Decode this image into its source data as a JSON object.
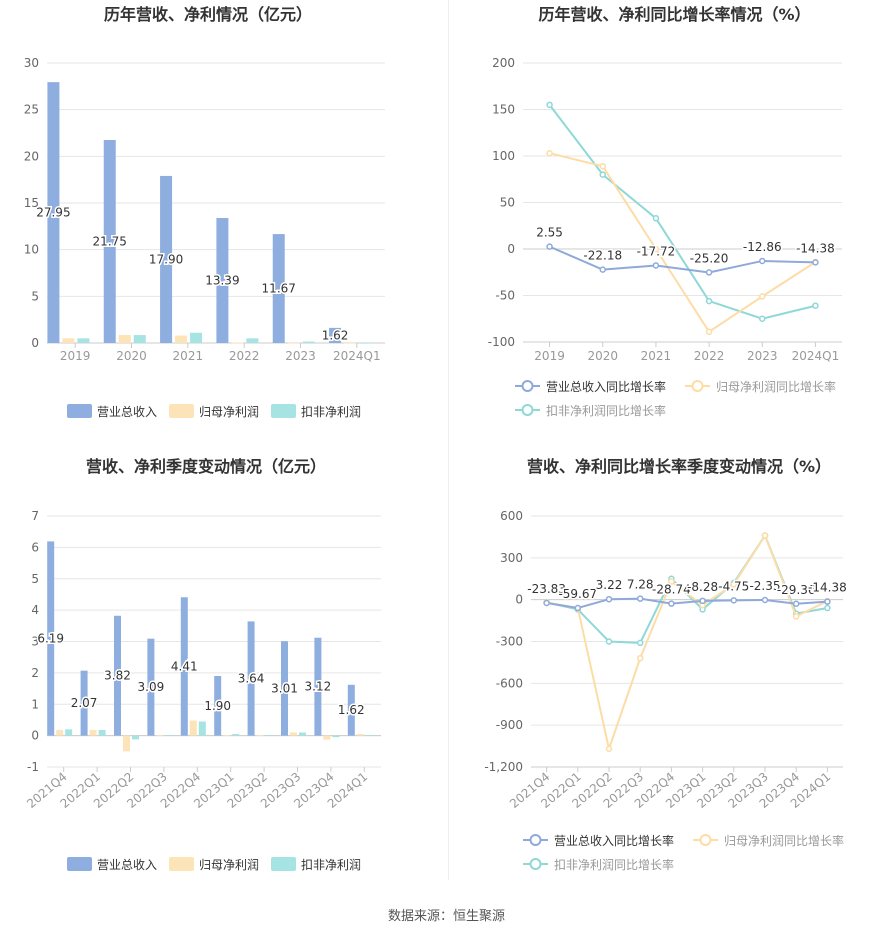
{
  "colors": {
    "revenue": "#8eaedf",
    "net": "#fde3b8",
    "deduct": "#a6e3e3",
    "line_revenue": "#8ea9da",
    "line_net": "#fddca5",
    "line_deduct": "#8ed8d8"
  },
  "source": "数据来源：恒生聚源",
  "charts": [
    {
      "chart_data": {
        "type": "bar",
        "title": "历年营收、净利情况（亿元）",
        "categories": [
          "2019",
          "2020",
          "2021",
          "2022",
          "2023",
          "2024Q1"
        ],
        "ylim": [
          0,
          30
        ],
        "yticks": [
          0,
          5,
          10,
          15,
          20,
          25,
          30
        ],
        "series": [
          {
            "name": "营业总收入",
            "values": [
              27.95,
              21.75,
              17.9,
              13.39,
              11.67,
              1.62
            ],
            "labels": [
              "27.95",
              "21.75",
              "17.90",
              "13.39",
              "11.67",
              "1.62"
            ]
          },
          {
            "name": "归母净利润",
            "values": [
              0.5,
              0.85,
              0.8,
              0.05,
              0.02,
              0.02
            ]
          },
          {
            "name": "扣非净利润",
            "values": [
              0.5,
              0.85,
              1.1,
              0.5,
              0.15,
              0.02
            ]
          }
        ],
        "legend": "bottom"
      }
    },
    {
      "chart_data": {
        "type": "line",
        "title": "历年营收、净利同比增长率情况（%）",
        "categories": [
          "2019",
          "2020",
          "2021",
          "2022",
          "2023",
          "2024Q1"
        ],
        "ylim": [
          -100,
          200
        ],
        "yticks": [
          -100,
          -50,
          0,
          50,
          100,
          150,
          200
        ],
        "series": [
          {
            "name": "营业总收入同比增长率",
            "values": [
              2.55,
              -22.18,
              -17.72,
              -25.2,
              -12.86,
              -14.38
            ],
            "labels": [
              "2.55",
              "-22.18",
              "-17.72",
              "-25.20",
              "-12.86",
              "-14.38"
            ]
          },
          {
            "name": "归母净利润同比增长率",
            "values": [
              103,
              89,
              0,
              -89,
              -51,
              -14
            ]
          },
          {
            "name": "扣非净利润同比增长率",
            "values": [
              155,
              80,
              33,
              -56,
              -75,
              -61
            ]
          }
        ],
        "legend": "bottom"
      }
    },
    {
      "chart_data": {
        "type": "bar",
        "title": "营收、净利季度变动情况（亿元）",
        "categories": [
          "2021Q4",
          "2022Q1",
          "2022Q2",
          "2022Q3",
          "2022Q4",
          "2023Q1",
          "2023Q2",
          "2023Q3",
          "2023Q4",
          "2024Q1"
        ],
        "ylim": [
          -1,
          7
        ],
        "yticks": [
          -1,
          0,
          1,
          2,
          3,
          4,
          5,
          6,
          7
        ],
        "series": [
          {
            "name": "营业总收入",
            "values": [
              6.19,
              2.07,
              3.82,
              3.09,
              4.41,
              1.9,
              3.64,
              3.01,
              3.12,
              1.62
            ],
            "labels": [
              "6.19",
              "2.07",
              "3.82",
              "3.09",
              "4.41",
              "1.90",
              "3.64",
              "3.01",
              "3.12",
              "1.62"
            ]
          },
          {
            "name": "归母净利润",
            "values": [
              0.18,
              0.18,
              -0.5,
              0.02,
              0.48,
              0.02,
              0.02,
              0.1,
              -0.13,
              0.05
            ]
          },
          {
            "name": "扣非净利润",
            "values": [
              0.2,
              0.18,
              -0.12,
              0.02,
              0.45,
              0.05,
              0.02,
              0.1,
              -0.05,
              0.02
            ]
          }
        ],
        "legend": "bottom"
      }
    },
    {
      "chart_data": {
        "type": "line",
        "title": "营收、净利同比增长率季度变动情况（%）",
        "categories": [
          "2021Q4",
          "2022Q1",
          "2022Q2",
          "2022Q3",
          "2022Q4",
          "2023Q1",
          "2023Q2",
          "2023Q3",
          "2023Q4",
          "2024Q1"
        ],
        "ylim": [
          -1200,
          600
        ],
        "yticks": [
          -1200,
          -900,
          -600,
          -300,
          0,
          300,
          600
        ],
        "ytick_labels": [
          "-1,200",
          "-900",
          "-600",
          "-300",
          "0",
          "300",
          "600"
        ],
        "series": [
          {
            "name": "营业总收入同比增长率",
            "values": [
              -23.83,
              -59.67,
              3.22,
              7.28,
              -28.74,
              -8.28,
              -4.75,
              -2.35,
              -29.36,
              -14.38
            ],
            "labels": [
              "-23.83",
              "-59.67",
              "3.22",
              "7.28",
              "-28.74",
              "-8.28",
              "-4.75",
              "-2.35",
              "-29.36",
              "-14.38"
            ]
          },
          {
            "name": "归母净利润同比增长率",
            "values": [
              -20,
              -60,
              -1070,
              -420,
              130,
              -40,
              110,
              460,
              -120,
              -10
            ]
          },
          {
            "name": "扣非净利润同比增长率",
            "values": [
              -20,
              -70,
              -300,
              -310,
              150,
              -70,
              120,
              460,
              -100,
              -60
            ]
          }
        ],
        "legend": "bottom"
      }
    }
  ]
}
